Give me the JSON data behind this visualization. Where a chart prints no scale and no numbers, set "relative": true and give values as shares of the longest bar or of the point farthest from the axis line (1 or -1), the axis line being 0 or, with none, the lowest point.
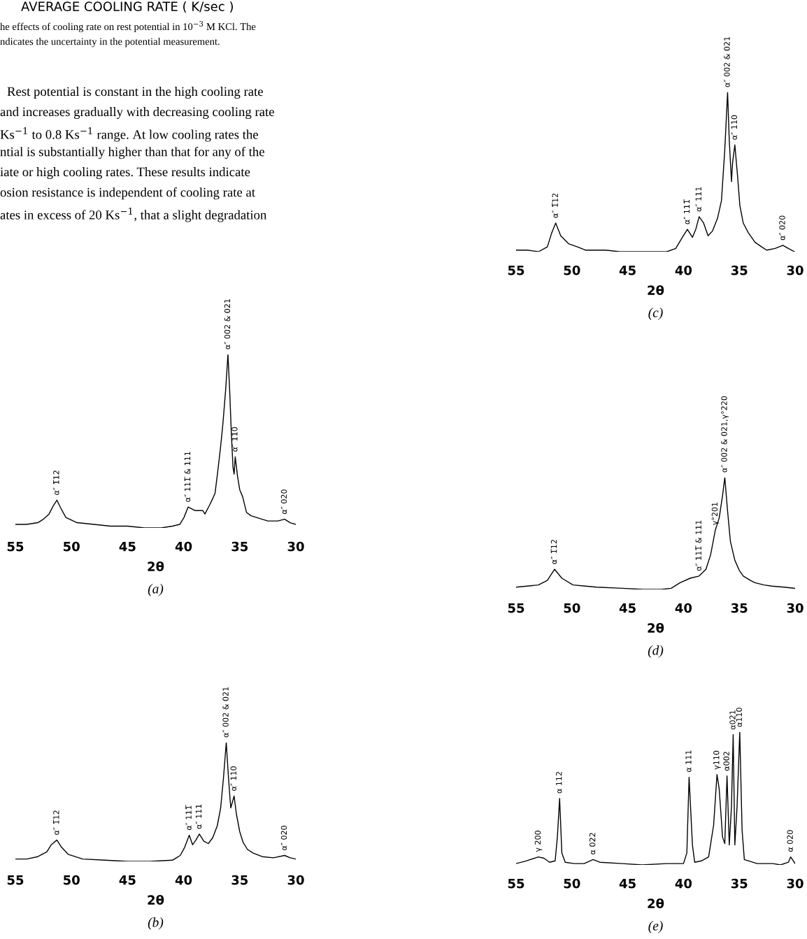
{
  "chart_data": [
    {
      "type": "other",
      "title": "AVERAGE COOLING RATE ( K/sec )",
      "annotations": [
        "he effects of cooling rate on rest potential in 10$^{−3}$ M KCl. The",
        "ndicates the uncertainty in the potential measurement.",
        "Rest potential is constant in the high cooling rate",
        "and increases gradually with decreasing cooling rate",
        "Ks$^{−1}$ to 0.8 Ks$^{−1}$ range. At low cooling rates the",
        "ntial is substantially higher than that for any of the",
        "iate or high cooling rates. These results indicate",
        "osion resistance is independent of cooling rate at",
        "ates in excess of 20 Ks$^{−1}$, that a slight degradation"
      ]
    },
    {
      "type": "line",
      "relative": true,
      "xlabel": "2θ",
      "xlim": [
        55,
        30
      ],
      "xticks": [
        55,
        50,
        45,
        40,
        35,
        30
      ],
      "grid": false,
      "marker": "none",
      "x": [
        55.0,
        54.0,
        53.0,
        52.5,
        52.0,
        51.6,
        51.3,
        51.0,
        50.5,
        49.5,
        48.0,
        46.5,
        45.0,
        43.5,
        42.0,
        41.0,
        40.35,
        39.97,
        39.6,
        39.3,
        39.0,
        38.6,
        38.3,
        38.1,
        37.7,
        37.4,
        37.2,
        36.95,
        36.7,
        36.5,
        36.25,
        36.05,
        35.9,
        35.75,
        35.6,
        35.5,
        35.4,
        35.2,
        35.0,
        34.74,
        34.4,
        34.0,
        33.5,
        32.5,
        31.6,
        31.0,
        30.5,
        30.0
      ],
      "series": [
        {
          "color": "#000000",
          "values": [
            0.02,
            0.02,
            0.03,
            0.05,
            0.08,
            0.13,
            0.16,
            0.12,
            0.06,
            0.03,
            0.02,
            0.01,
            0.01,
            0.0,
            0.0,
            0.01,
            0.02,
            0.06,
            0.12,
            0.11,
            0.1,
            0.1,
            0.1,
            0.08,
            0.13,
            0.17,
            0.2,
            0.33,
            0.47,
            0.6,
            0.8,
            1.0,
            0.8,
            0.55,
            0.35,
            0.31,
            0.41,
            0.3,
            0.22,
            0.18,
            0.09,
            0.07,
            0.06,
            0.04,
            0.04,
            0.05,
            0.03,
            0.02
          ]
        }
      ],
      "annotations": [
        {
          "text": "α″ 1̅12",
          "x": 51.3,
          "y": 0.16
        },
        {
          "text": "α″ 111̅ & 111",
          "x": 39.6,
          "y": 0.12
        },
        {
          "text": "α″ 002 & 021",
          "x": 36.05,
          "y": 1.0
        },
        {
          "text": "α″ 110",
          "x": 35.4,
          "y": 0.41
        },
        {
          "text": "α″ 020",
          "x": 31.0,
          "y": 0.05
        },
        "(a)"
      ]
    },
    {
      "type": "line",
      "relative": true,
      "xlabel": "2θ",
      "xlim": [
        55,
        30
      ],
      "xticks": [
        55,
        50,
        45,
        40,
        35,
        30
      ],
      "grid": false,
      "marker": "none",
      "x": [
        55.0,
        54.0,
        53.0,
        52.2,
        51.8,
        51.3,
        50.9,
        50.3,
        49.0,
        47.0,
        45.0,
        43.0,
        41.0,
        40.3,
        39.9,
        39.5,
        39.2,
        38.9,
        38.6,
        38.2,
        37.8,
        37.4,
        37.0,
        36.7,
        36.45,
        36.2,
        36.0,
        35.8,
        35.65,
        35.5,
        35.3,
        35.0,
        34.7,
        34.3,
        33.8,
        33.0,
        32.0,
        31.0,
        30.5,
        30.0
      ],
      "series": [
        {
          "color": "#000000",
          "values": [
            0.02,
            0.02,
            0.04,
            0.08,
            0.14,
            0.18,
            0.12,
            0.06,
            0.02,
            0.01,
            0.0,
            0.0,
            0.01,
            0.05,
            0.12,
            0.22,
            0.14,
            0.18,
            0.23,
            0.17,
            0.15,
            0.2,
            0.3,
            0.45,
            0.7,
            1.0,
            0.7,
            0.45,
            0.5,
            0.55,
            0.4,
            0.25,
            0.16,
            0.1,
            0.07,
            0.04,
            0.03,
            0.05,
            0.03,
            0.02
          ]
        }
      ],
      "annotations": [
        {
          "text": "α″ 1̅12",
          "x": 51.3,
          "y": 0.18
        },
        {
          "text": "α″ 111̅",
          "x": 39.5,
          "y": 0.22
        },
        {
          "text": "α″ 111",
          "x": 38.6,
          "y": 0.23
        },
        {
          "text": "α″ 002 & 021",
          "x": 36.2,
          "y": 1.0
        },
        {
          "text": "α″ 110",
          "x": 35.5,
          "y": 0.55
        },
        {
          "text": "α″ 020",
          "x": 31.0,
          "y": 0.05
        },
        "(b)"
      ]
    },
    {
      "type": "line",
      "relative": true,
      "xlabel": "2θ",
      "xlim": [
        55,
        30
      ],
      "xticks": [
        55,
        50,
        45,
        40,
        35,
        30
      ],
      "grid": false,
      "marker": "none",
      "x": [
        55.0,
        54.0,
        53.0,
        52.2,
        51.8,
        51.45,
        51.0,
        50.3,
        49.5,
        48.8,
        47.0,
        45.7,
        43.5,
        41.5,
        40.7,
        40.1,
        39.65,
        39.2,
        38.9,
        38.6,
        38.2,
        37.8,
        37.4,
        36.95,
        36.6,
        36.3,
        36.05,
        35.9,
        35.7,
        35.6,
        35.4,
        35.15,
        34.95,
        34.65,
        34.2,
        33.6,
        33.0,
        32.55,
        31.8,
        31.1,
        30.6,
        30.05
      ],
      "series": [
        {
          "color": "#000000",
          "values": [
            0.01,
            0.01,
            0.0,
            0.03,
            0.12,
            0.18,
            0.1,
            0.05,
            0.03,
            0.01,
            0.01,
            0.0,
            0.0,
            0.0,
            0.02,
            0.09,
            0.14,
            0.09,
            0.14,
            0.22,
            0.18,
            0.1,
            0.13,
            0.21,
            0.32,
            0.64,
            1.0,
            0.7,
            0.44,
            0.56,
            0.67,
            0.47,
            0.29,
            0.18,
            0.12,
            0.06,
            0.03,
            0.01,
            0.02,
            0.04,
            0.02,
            0.0
          ]
        }
      ],
      "annotations": [
        {
          "text": "α″ 1̅12",
          "x": 51.45,
          "y": 0.18
        },
        {
          "text": "α″ 111̅",
          "x": 39.65,
          "y": 0.14
        },
        {
          "text": "α″ 111",
          "x": 38.6,
          "y": 0.22
        },
        {
          "text": "α″ 002 & 021",
          "x": 36.05,
          "y": 1.0
        },
        {
          "text": "α″ 110",
          "x": 35.4,
          "y": 0.67
        },
        {
          "text": "α″ 020",
          "x": 31.1,
          "y": 0.04
        },
        "(c)"
      ]
    },
    {
      "type": "line",
      "relative": true,
      "xlabel": "2θ",
      "xlim": [
        55,
        30
      ],
      "xticks": [
        55,
        50,
        45,
        40,
        35,
        30
      ],
      "grid": false,
      "marker": "none",
      "x": [
        55.0,
        54.0,
        53.0,
        52.2,
        51.55,
        50.9,
        49.9,
        48.8,
        47.8,
        45.5,
        43.6,
        42.0,
        41.1,
        40.3,
        39.4,
        38.6,
        37.99,
        37.57,
        37.15,
        36.8,
        36.5,
        36.3,
        36.05,
        35.8,
        35.4,
        35.0,
        34.65,
        34.0,
        33.6,
        32.8,
        32.1,
        31.0,
        30.05
      ],
      "series": [
        {
          "color": "#000000",
          "values": [
            0.02,
            0.03,
            0.04,
            0.08,
            0.18,
            0.1,
            0.04,
            0.03,
            0.02,
            0.01,
            0.0,
            0.0,
            0.01,
            0.06,
            0.1,
            0.12,
            0.18,
            0.31,
            0.53,
            0.64,
            0.84,
            1.0,
            0.7,
            0.43,
            0.26,
            0.17,
            0.12,
            0.08,
            0.06,
            0.04,
            0.03,
            0.02,
            0.01
          ]
        }
      ],
      "annotations": [
        {
          "text": "α″ 1̅12",
          "x": 51.55,
          "y": 0.18
        },
        {
          "text": "α″ 111̅ & 111",
          "x": 38.6,
          "y": 0.12
        },
        {
          "text": "γ°201",
          "x": 37.15,
          "y": 0.53
        },
        {
          "text": "α″ 002 & 021,γ°220",
          "x": 36.3,
          "y": 1.0
        },
        "(d)"
      ]
    },
    {
      "type": "line",
      "relative": true,
      "xlabel": "2θ",
      "xlim": [
        55,
        30
      ],
      "xticks": [
        55,
        50,
        45,
        40,
        35,
        30
      ],
      "grid": false,
      "marker": "none",
      "x": [
        55.0,
        54.1,
        53.0,
        52.5,
        52.0,
        51.5,
        51.3,
        51.1,
        50.9,
        50.6,
        49.8,
        48.9,
        48.1,
        47.5,
        45.5,
        43.7,
        41.5,
        40.0,
        39.7,
        39.5,
        39.2,
        39.0,
        38.4,
        37.75,
        37.3,
        37.0,
        36.8,
        36.5,
        36.3,
        36.1,
        35.9,
        35.7,
        35.55,
        35.4,
        35.2,
        34.96,
        34.75,
        34.55,
        33.4,
        32.0,
        31.3,
        30.6,
        30.4,
        30.0
      ],
      "series": [
        {
          "color": "#000000",
          "values": [
            0.01,
            0.03,
            0.06,
            0.05,
            0.02,
            0.03,
            0.21,
            0.5,
            0.09,
            0.02,
            0.01,
            0.01,
            0.04,
            0.02,
            0.01,
            0.0,
            0.01,
            0.01,
            0.09,
            0.66,
            0.15,
            0.02,
            0.03,
            0.06,
            0.3,
            0.68,
            0.57,
            0.21,
            0.16,
            0.67,
            0.15,
            0.44,
            0.98,
            0.15,
            0.44,
            1.0,
            0.26,
            0.04,
            0.01,
            0.01,
            0.0,
            0.02,
            0.06,
            0.01
          ]
        }
      ],
      "annotations": [
        {
          "text": "γ 200",
          "x": 53.0,
          "y": 0.06
        },
        {
          "text": "α 112",
          "x": 51.1,
          "y": 0.5
        },
        {
          "text": "α 022",
          "x": 48.1,
          "y": 0.04
        },
        {
          "text": "α 111",
          "x": 39.5,
          "y": 0.66
        },
        {
          "text": "γ110",
          "x": 37.0,
          "y": 0.68
        },
        {
          "text": "α002",
          "x": 36.1,
          "y": 0.67
        },
        {
          "text": "α021",
          "x": 35.55,
          "y": 0.98
        },
        {
          "text": "α110",
          "x": 34.96,
          "y": 1.0
        },
        {
          "text": "α 020",
          "x": 30.4,
          "y": 0.06
        },
        "(e)"
      ]
    }
  ]
}
